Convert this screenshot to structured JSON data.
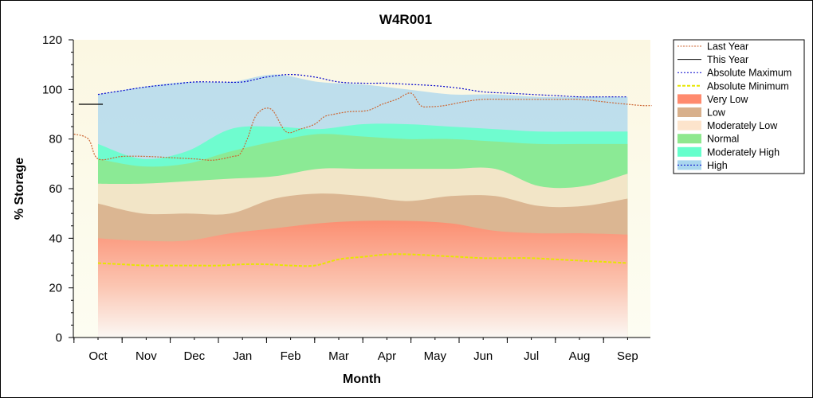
{
  "chart_data": {
    "type": "area",
    "title": "W4R001",
    "xlabel": "Month",
    "ylabel": "% Storage",
    "ylim": [
      0,
      120
    ],
    "yticks": [
      0,
      20,
      40,
      60,
      80,
      100,
      120
    ],
    "categories": [
      "Oct",
      "Nov",
      "Dec",
      "Jan",
      "Feb",
      "Mar",
      "Apr",
      "May",
      "Jun",
      "Jul",
      "Aug",
      "Sep"
    ],
    "grid": false,
    "legend_position": "right",
    "bands": [
      {
        "name": "Very Low",
        "color": "#ff8a6e",
        "upper": [
          40,
          39,
          39,
          42,
          44,
          46,
          47,
          47,
          46,
          43,
          42,
          42,
          41.5
        ]
      },
      {
        "name": "Low",
        "color": "#d8b08c",
        "upper": [
          54,
          50,
          50,
          50,
          56,
          58,
          57,
          55,
          57,
          57,
          53,
          53,
          56
        ]
      },
      {
        "name": "Moderately Low",
        "color": "#fde4cc",
        "upper": [
          62,
          62,
          63,
          64,
          65,
          68,
          68,
          68,
          68,
          68,
          61,
          61,
          66
        ]
      },
      {
        "name": "Normal",
        "color": "#8ee88e",
        "upper": [
          72,
          69,
          70,
          75,
          79,
          82,
          81,
          80,
          80,
          79,
          78,
          78,
          78
        ]
      },
      {
        "name": "Moderately High",
        "color": "#66ffcc",
        "upper": [
          78,
          72,
          75,
          84,
          85,
          84,
          86,
          86,
          85,
          84,
          83,
          83,
          83
        ]
      },
      {
        "name": "High",
        "color": "#a9d6ee",
        "upper": [
          98,
          101,
          103,
          103,
          106,
          103,
          102,
          100,
          98,
          98,
          97,
          97,
          97
        ]
      }
    ],
    "series": [
      {
        "name": "Last Year",
        "color": "#cc6633",
        "x": [
          -0.5,
          -0.2,
          0,
          0.5,
          1.0,
          1.5,
          2.0,
          2.4,
          2.8,
          2.95,
          3.1,
          3.3,
          3.6,
          3.9,
          4.2,
          4.5,
          4.7,
          4.9,
          5.2,
          5.6,
          5.9,
          6.2,
          6.5,
          6.7,
          6.9,
          7.2,
          7.6,
          8.0,
          8.5,
          9.0,
          9.5,
          10.0,
          10.5,
          11.0,
          11.3,
          11.5
        ],
        "y": [
          82,
          80,
          72,
          73,
          73,
          72.5,
          72,
          71.5,
          73,
          74,
          80,
          90,
          92,
          83,
          84,
          86,
          89,
          90,
          91,
          91.5,
          94,
          96,
          98.5,
          93.5,
          93,
          93.5,
          95,
          96,
          96,
          96,
          96,
          96,
          95,
          94,
          93.5,
          93.5
        ]
      },
      {
        "name": "This Year",
        "color": "#000000",
        "x": [
          -0.4,
          0.1
        ],
        "y": [
          94,
          94
        ]
      },
      {
        "name": "Absolute Maximum",
        "color": "#0000cc",
        "x": [
          0,
          0.5,
          1,
          1.5,
          2,
          2.5,
          3,
          3.5,
          4,
          4.5,
          5,
          5.5,
          6,
          6.5,
          7,
          7.5,
          8,
          8.5,
          9,
          9.5,
          10,
          10.5,
          11
        ],
        "y": [
          98,
          99.5,
          101,
          102,
          103,
          103,
          103,
          105,
          106,
          105,
          103,
          102.5,
          102.5,
          102,
          101.5,
          100.5,
          99,
          98.5,
          98,
          97.5,
          97,
          97,
          97
        ]
      },
      {
        "name": "Absolute Minimum",
        "color": "#e6e600",
        "x": [
          0,
          0.5,
          1,
          1.5,
          2,
          2.5,
          3,
          3.5,
          4,
          4.5,
          5,
          5.5,
          6,
          6.5,
          7,
          7.5,
          8,
          8.5,
          9,
          9.5,
          10,
          10.5,
          11
        ],
        "y": [
          30,
          29.5,
          29,
          29,
          29,
          29,
          29.5,
          29.5,
          29,
          29,
          31.5,
          32.5,
          33.5,
          33.5,
          33,
          32.5,
          32,
          32,
          32,
          31.5,
          31,
          30.5,
          30
        ]
      }
    ],
    "legend": [
      "Last Year",
      "This Year",
      "Absolute Maximum",
      "Absolute Minimum",
      "Very Low",
      "Low",
      "Moderately Low",
      "Normal",
      "Moderately High",
      "High"
    ]
  }
}
